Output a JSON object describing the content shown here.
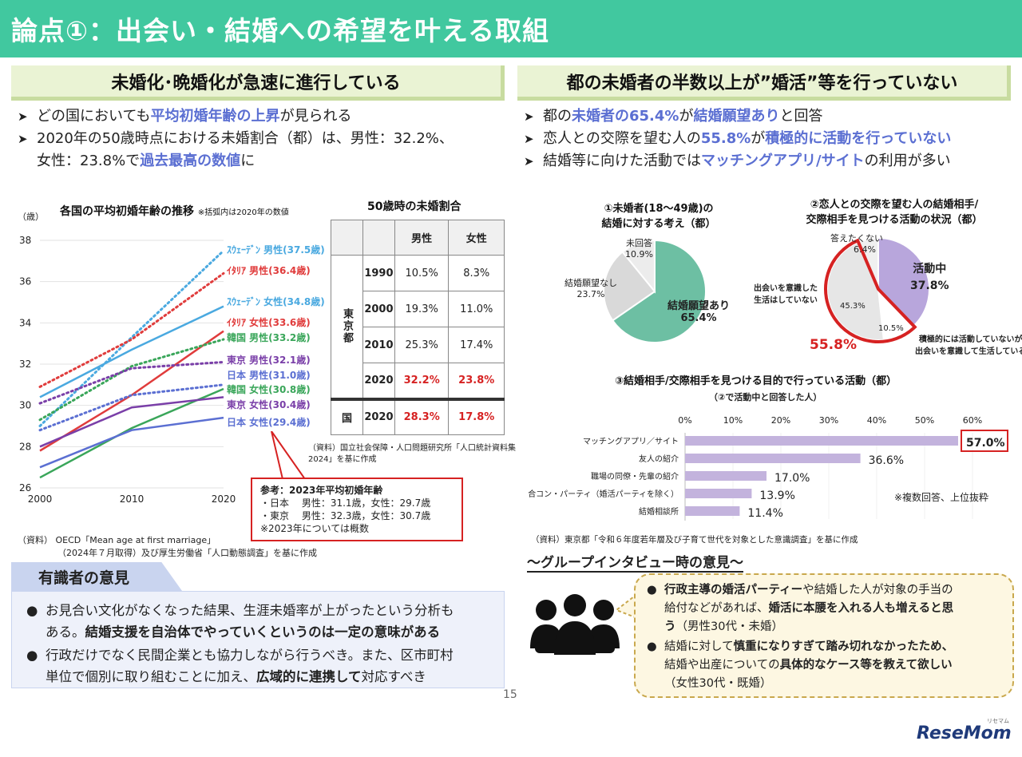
{
  "header": {
    "title": "論点①：出会い・結婚への希望を叶える取組"
  },
  "left": {
    "section_title": "未婚化･晩婚化が急速に進行している",
    "bullet1": {
      "pre": "どの国においても",
      "hl": "平均初婚年齢の上昇",
      "post": "が見られる"
    },
    "bullet2": {
      "line1": "2020年の50歳時点における未婚割合（都）は、男性：32.2%、",
      "pre2": "女性：23.8%で",
      "hl": "過去最高の数値",
      "post2": "に"
    }
  },
  "right": {
    "section_title": "都の未婚者の半数以上が”婚活”等を行っていない",
    "bullet1": {
      "pre": "都の",
      "hl1": "未婚者の65.4%",
      "mid": "が",
      "hl2": "結婚願望あり",
      "post": "と回答"
    },
    "bullet2": {
      "pre": "恋人との交際を望む人の",
      "hl1": "55.8%",
      "mid": "が",
      "hl2": "積極的に活動を行っていない"
    },
    "bullet3": {
      "pre": "結婚等に向けた活動では",
      "hl": "マッチングアプリ/サイト",
      "post": "の利用が多い"
    }
  },
  "chart_data": [
    {
      "type": "line",
      "title": "各国の平均初婚年齢の推移",
      "title_note": "※括弧内は2020年の数値",
      "ylabel": "（歳）",
      "x": [
        2000,
        2010,
        2020
      ],
      "ylim": [
        26,
        38
      ],
      "yticks": [
        "38",
        "36",
        "34",
        "32",
        "30",
        "28",
        "26"
      ],
      "xticks": [
        "2000",
        "2010",
        "2020"
      ],
      "series": [
        {
          "name": "ｽｳｪｰﾃﾞﾝ 男性(37.5歳)",
          "values": [
            29.0,
            33.3,
            37.5
          ],
          "color": "#4aa9e0",
          "dash": true
        },
        {
          "name": "ｲﾀﾘｱ 男性(36.4歳)",
          "values": [
            30.9,
            33.2,
            36.4
          ],
          "color": "#e03c3c",
          "dash": true
        },
        {
          "name": "ｽｳｪｰﾃﾞﾝ 女性(34.8歳)",
          "values": [
            30.4,
            32.7,
            34.8
          ],
          "color": "#4aa9e0",
          "dash": false
        },
        {
          "name": "ｲﾀﾘｱ 女性(33.6歳)",
          "values": [
            27.8,
            30.5,
            33.6
          ],
          "color": "#e03c3c",
          "dash": false
        },
        {
          "name": "韓国 男性(33.2歳)",
          "values": [
            29.3,
            31.9,
            33.2
          ],
          "color": "#3aa65a",
          "dash": true
        },
        {
          "name": "東京 男性(32.1歳)",
          "values": [
            30.1,
            31.8,
            32.1
          ],
          "color": "#7a3fa8",
          "dash": true
        },
        {
          "name": "日本 男性(31.0歳)",
          "values": [
            28.8,
            30.5,
            31.0
          ],
          "color": "#5b6fd2",
          "dash": true
        },
        {
          "name": "韓国 女性(30.8歳)",
          "values": [
            26.5,
            28.9,
            30.8
          ],
          "color": "#3aa65a",
          "dash": false
        },
        {
          "name": "東京 女性(30.4歳)",
          "values": [
            28.0,
            29.9,
            30.4
          ],
          "color": "#7a3fa8",
          "dash": false
        },
        {
          "name": "日本 女性(29.4歳)",
          "values": [
            27.0,
            28.8,
            29.4
          ],
          "color": "#5b6fd2",
          "dash": false
        }
      ],
      "source_line1": "（資料） OECD「Mean age at first marriage」",
      "source_line2": "（2024年７月取得）及び厚生労働省「人口動態調査」を基に作成"
    },
    {
      "type": "table",
      "title": "50歳時の未婚割合",
      "col_male": "男性",
      "col_female": "女性",
      "group_label": "東京都",
      "nation_label": "国",
      "rows": [
        {
          "year": "1990",
          "male": "10.5%",
          "female": "8.3%"
        },
        {
          "year": "2000",
          "male": "19.3%",
          "female": "11.0%"
        },
        {
          "year": "2010",
          "male": "25.3%",
          "female": "17.4%"
        },
        {
          "year": "2020",
          "male": "32.2%",
          "female": "23.8%"
        }
      ],
      "nation_row": {
        "year": "2020",
        "male": "28.3%",
        "female": "17.8%"
      },
      "source_line1": "（資料）国立社会保障・人口問題研究所「人口統計資料集",
      "source_line2": "2024」を基に作成"
    },
    {
      "type": "pie",
      "title_line1": "①未婚者(18～49歳)の",
      "title_line2": "結婚に対する考え（都）",
      "slices": [
        {
          "label": "結婚願望あり",
          "value": 65.4,
          "value_label": "65.4%",
          "color": "#6dbfa3"
        },
        {
          "label": "結婚願望なし",
          "value": 23.7,
          "value_label": "23.7%",
          "color": "#d9d9d9"
        },
        {
          "label": "未回答",
          "value": 10.9,
          "value_label": "10.9%",
          "color": "#ececec"
        }
      ]
    },
    {
      "type": "pie",
      "title_line1": "②恋人との交際を望む人の結婚相手/",
      "title_line2": "交際相手を見つける活動の状況（都）",
      "slices": [
        {
          "label": "活動中",
          "value": 37.8,
          "value_label": "37.8%",
          "color": "#b8a6dc"
        },
        {
          "label_line1": "積極的には活動していないが",
          "label_line2": "出会いを意識して生活している",
          "value": 10.5,
          "value_label": "10.5%",
          "color": "#ffffff"
        },
        {
          "label_line1": "出会いを意識した",
          "label_line2": "生活はしていない",
          "value": 45.3,
          "value_label": "45.3%",
          "color": "#e6e6e6"
        },
        {
          "label": "答えたくない",
          "value": 6.4,
          "value_label": "6.4%",
          "color": "#f0f0f0"
        }
      ],
      "highlight_label": "55.8%"
    },
    {
      "type": "bar",
      "orientation": "horizontal",
      "title": "③結婚相手/交際相手を見つける目的で行っている活動（都）",
      "subtitle": "（②で活動中と回答した人）",
      "xlim": [
        0,
        60
      ],
      "xticks": [
        "0%",
        "10%",
        "20%",
        "30%",
        "40%",
        "50%",
        "60%"
      ],
      "categories": [
        "マッチングアプリ／サイト",
        "友人の紹介",
        "職場の同僚・先輩の紹介",
        "合コン・パーティ（婚活パーティを除く）",
        "結婚相談所"
      ],
      "values": [
        57.0,
        36.6,
        17.0,
        13.9,
        11.4
      ],
      "value_labels": [
        "57.0%",
        "36.6%",
        "17.0%",
        "13.9%",
        "11.4%"
      ],
      "color": "#c3b3dd",
      "note": "※複数回答、上位抜粋",
      "source": "（資料）東京都「令和６年度若年層及び子育て世代を対象とした意識調査」を基に作成"
    }
  ],
  "reference": {
    "title": "参考：2023年平均初婚年齢",
    "japan": "・日本　 男性：31.1歳，女性：29.7歳",
    "tokyo": "・東京　 男性：32.3歳，女性：30.7歳",
    "note": "※2023年については概数"
  },
  "expert": {
    "title": "有識者の意見",
    "p1_line1": "お見合い文化がなくなった結果、生涯未婚率が上がったという分析も",
    "p1_pre2": "ある。",
    "p1_bold": "結婚支援を自治体でやっていくというのは一定の意味がある",
    "p2_line1": "行政だけでなく民間企業とも協力しながら行うべき。また、区市町村",
    "p2_pre2": "単位で個別に取り組むことに加え、",
    "p2_bold": "広域的に連携して",
    "p2_post2": "対応すべき"
  },
  "interview": {
    "title": "～グループインタビュー時の意見～",
    "c1_bold1": "行政主導の婚活パーティー",
    "c1_post1": "や結婚した人が対象の手当の",
    "c1_pre2": "給付などがあれば、",
    "c1_bold2": "婚活に本腰を入れる人も増えると思",
    "c1_bold3": "う",
    "c1_post3": "（男性30代・未婚）",
    "c2_pre1": "結婚に対して",
    "c2_bold1": "慎重になりすぎて踏み切れなかったため、",
    "c2_pre2": "結婚や出産についての",
    "c2_bold2": "具体的なケース等を教えて欲しい",
    "c2_post3": "（女性30代・既婚）"
  },
  "footer": {
    "page": "15",
    "logo": "ReseMom",
    "logo_sub": "リセマム"
  }
}
